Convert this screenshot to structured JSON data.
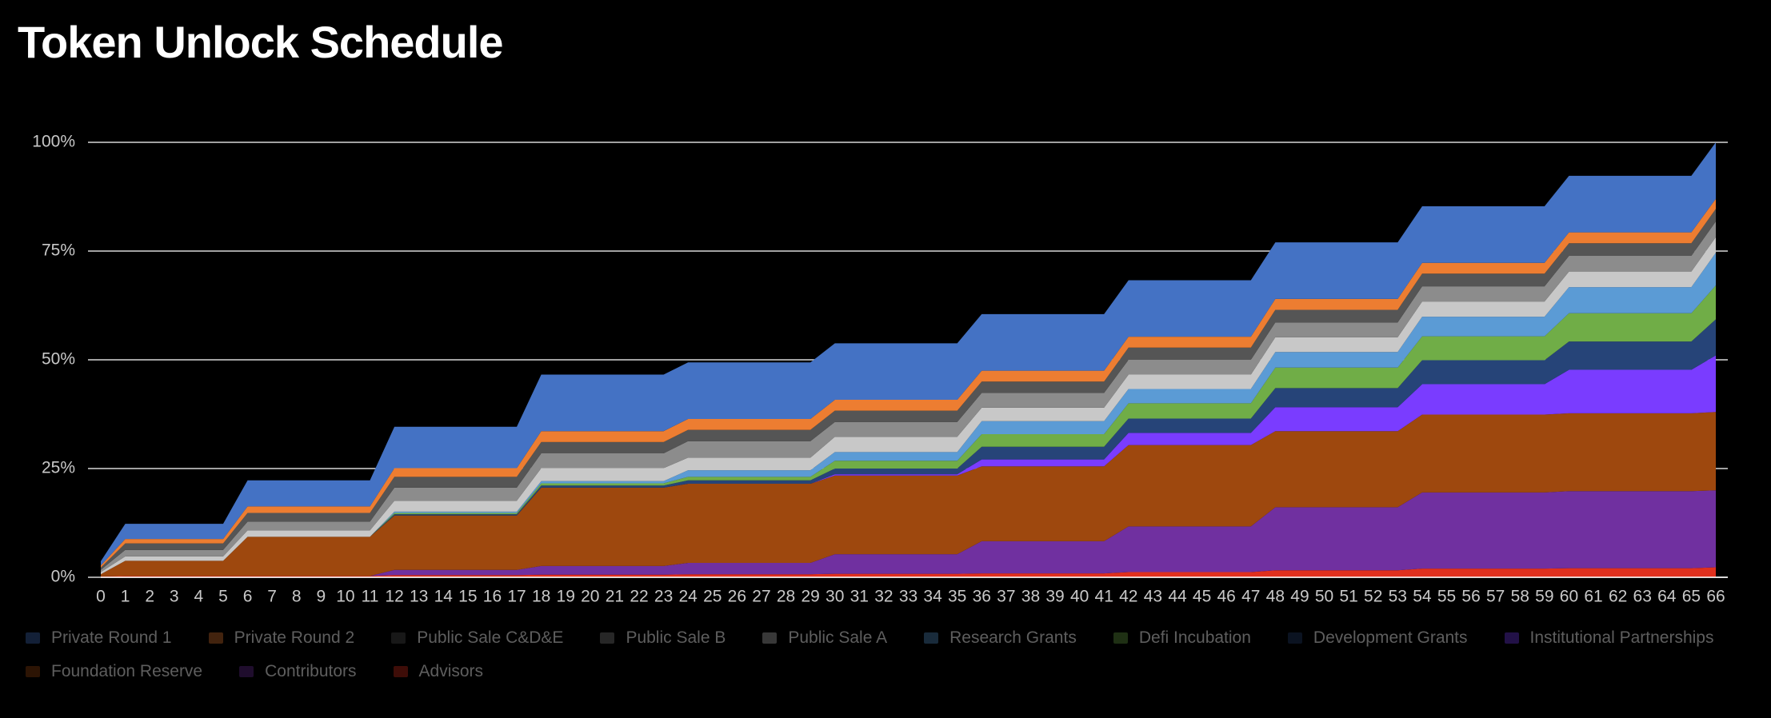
{
  "chart_data": {
    "type": "stacked-area",
    "title": "Token Unlock Schedule",
    "x": [
      0,
      1,
      2,
      3,
      4,
      5,
      6,
      7,
      8,
      9,
      10,
      11,
      12,
      13,
      14,
      15,
      16,
      17,
      18,
      19,
      20,
      21,
      22,
      23,
      24,
      25,
      26,
      27,
      28,
      29,
      30,
      31,
      32,
      33,
      34,
      35,
      36,
      37,
      38,
      39,
      40,
      41,
      42,
      43,
      44,
      45,
      46,
      47,
      48,
      49,
      50,
      51,
      52,
      53,
      54,
      55,
      56,
      57,
      58,
      59,
      60,
      61,
      62,
      63,
      64,
      65,
      66
    ],
    "xlim": [
      0,
      66
    ],
    "ylim": [
      0,
      100
    ],
    "yticks": [
      {
        "value": 0,
        "label": "0%"
      },
      {
        "value": 25,
        "label": "25%"
      },
      {
        "value": 50,
        "label": "50%"
      },
      {
        "value": 75,
        "label": "75%"
      },
      {
        "value": 100,
        "label": "100%"
      }
    ],
    "grid": true,
    "series": [
      {
        "name": "Private Round 1",
        "color": "#4472c4",
        "values": [
          1,
          3.5,
          3.5,
          3.5,
          3.5,
          3.5,
          6,
          6,
          6,
          6,
          6,
          6,
          9.5,
          9.5,
          9.5,
          9.5,
          9.5,
          9.5,
          13,
          13,
          13,
          13,
          13,
          13,
          13,
          13,
          13,
          13,
          13,
          13,
          13,
          13,
          13,
          13,
          13,
          13,
          13,
          13,
          13,
          13,
          13,
          13,
          13,
          13,
          13,
          13,
          13,
          13,
          13,
          13,
          13,
          13,
          13,
          13,
          13,
          13,
          13,
          13,
          13,
          13,
          13,
          13,
          13,
          13,
          13,
          13,
          13
        ]
      },
      {
        "name": "Private Round 2",
        "color": "#ed7d31",
        "values": [
          0.5,
          1,
          1,
          1,
          1,
          1,
          1.5,
          1.5,
          1.5,
          1.5,
          1.5,
          1.5,
          2,
          2,
          2,
          2,
          2,
          2,
          2.5,
          2.5,
          2.5,
          2.5,
          2.5,
          2.5,
          2.5,
          2.5,
          2.5,
          2.5,
          2.5,
          2.5,
          2.5,
          2.5,
          2.5,
          2.5,
          2.5,
          2.5,
          2.5,
          2.5,
          2.5,
          2.5,
          2.5,
          2.5,
          2.5,
          2.5,
          2.5,
          2.5,
          2.5,
          2.5,
          2.5,
          2.5,
          2.5,
          2.5,
          2.5,
          2.5,
          2.5,
          2.5,
          2.5,
          2.5,
          2.5,
          2.5,
          2.5,
          2.5,
          2.5,
          2.5,
          2.5,
          2.5,
          2.3
        ]
      },
      {
        "name": "Public Sale C&D&E",
        "color": "#555555",
        "values": [
          0.5,
          1.5,
          1.5,
          1.5,
          1.5,
          1.5,
          2,
          2,
          2,
          2,
          2,
          2,
          2.5,
          2.5,
          2.5,
          2.5,
          2.5,
          2.5,
          2.6,
          2.6,
          2.6,
          2.6,
          2.6,
          2.6,
          2.6,
          2.6,
          2.6,
          2.6,
          2.6,
          2.6,
          2.6,
          2.6,
          2.6,
          2.6,
          2.6,
          2.6,
          2.6,
          2.6,
          2.6,
          2.6,
          2.6,
          2.6,
          2.8,
          2.8,
          2.8,
          2.8,
          2.8,
          2.8,
          2.9,
          2.9,
          2.9,
          2.9,
          2.9,
          2.9,
          2.9,
          2.9,
          2.9,
          2.9,
          2.9,
          2.9,
          2.9,
          2.9,
          2.9,
          2.9,
          2.9,
          2.9,
          2.9
        ]
      },
      {
        "name": "Public Sale B",
        "color": "#8c8c8c",
        "values": [
          0.5,
          1.5,
          1.5,
          1.5,
          1.5,
          1.5,
          2,
          2,
          2,
          2,
          2,
          2,
          3,
          3,
          3,
          3,
          3,
          3,
          3.4,
          3.4,
          3.4,
          3.4,
          3.4,
          3.4,
          3.8,
          3.8,
          3.8,
          3.8,
          3.8,
          3.8,
          3.4,
          3.4,
          3.4,
          3.4,
          3.4,
          3.4,
          3.4,
          3.4,
          3.4,
          3.4,
          3.4,
          3.4,
          3.4,
          3.4,
          3.4,
          3.4,
          3.4,
          3.4,
          3.4,
          3.4,
          3.4,
          3.4,
          3.4,
          3.4,
          3.5,
          3.5,
          3.5,
          3.5,
          3.5,
          3.5,
          3.6,
          3.6,
          3.6,
          3.6,
          3.6,
          3.6,
          3.6
        ]
      },
      {
        "name": "Public Sale A",
        "color": "#c8c8c8",
        "values": [
          0.5,
          1,
          1,
          1,
          1,
          1,
          1.5,
          1.5,
          1.5,
          1.5,
          1.5,
          1.5,
          2.5,
          2.5,
          2.5,
          2.5,
          2.5,
          2.5,
          3,
          3,
          3,
          3,
          3,
          3,
          2.9,
          2.9,
          2.9,
          2.9,
          2.9,
          2.9,
          3.5,
          3.5,
          3.5,
          3.5,
          3.5,
          3.5,
          3.1,
          3.1,
          3.1,
          3.1,
          3.1,
          3.1,
          3.3,
          3.3,
          3.3,
          3.3,
          3.3,
          3.3,
          3.4,
          3.4,
          3.4,
          3.4,
          3.4,
          3.4,
          3.5,
          3.5,
          3.5,
          3.5,
          3.5,
          3.5,
          3.6,
          3.6,
          3.6,
          3.6,
          3.6,
          3.6,
          3.6
        ]
      },
      {
        "name": "Research Grants",
        "color": "#5b9bd5",
        "values": [
          0,
          0,
          0,
          0,
          0,
          0,
          0,
          0,
          0,
          0,
          0,
          0,
          0.3,
          0.3,
          0.3,
          0.3,
          0.3,
          0.3,
          0.5,
          0.5,
          0.5,
          0.5,
          0.5,
          0.5,
          1.5,
          1.5,
          1.5,
          1.5,
          1.5,
          1.5,
          2,
          2,
          2,
          2,
          2,
          2,
          3,
          3,
          3,
          3,
          3,
          3,
          3.3,
          3.3,
          3.3,
          3.3,
          3.3,
          3.3,
          3.6,
          3.6,
          3.6,
          3.6,
          3.6,
          3.6,
          4.5,
          4.5,
          4.5,
          4.5,
          4.5,
          4.5,
          6,
          6,
          6,
          6,
          6,
          6,
          7.5
        ]
      },
      {
        "name": "Defi Incubation",
        "color": "#70ad47",
        "values": [
          0,
          0,
          0,
          0,
          0,
          0,
          0,
          0,
          0,
          0,
          0,
          0,
          0.3,
          0.3,
          0.3,
          0.3,
          0.3,
          0.3,
          0.5,
          0.5,
          0.5,
          0.5,
          0.5,
          0.5,
          0.8,
          0.8,
          0.8,
          0.8,
          0.8,
          0.8,
          1.8,
          1.8,
          1.8,
          1.8,
          1.8,
          1.8,
          2.9,
          2.9,
          2.9,
          2.9,
          2.9,
          2.9,
          3.5,
          3.5,
          3.5,
          3.5,
          3.5,
          3.5,
          4.7,
          4.7,
          4.7,
          4.7,
          4.7,
          4.7,
          5.5,
          5.5,
          5.5,
          5.5,
          5.5,
          5.5,
          6.5,
          6.5,
          6.5,
          6.5,
          6.5,
          6.5,
          7.8
        ]
      },
      {
        "name": "Development Grants",
        "color": "#264478",
        "values": [
          0,
          0,
          0,
          0,
          0,
          0,
          0,
          0,
          0,
          0,
          0,
          0,
          0.3,
          0.3,
          0.3,
          0.3,
          0.3,
          0.3,
          0.5,
          0.5,
          0.5,
          0.5,
          0.5,
          0.5,
          0.8,
          0.8,
          0.8,
          0.8,
          0.8,
          0.8,
          1.3,
          1.3,
          1.3,
          1.3,
          1.3,
          1.3,
          2.9,
          2.9,
          2.9,
          2.9,
          2.9,
          2.9,
          3.3,
          3.3,
          3.3,
          3.3,
          3.3,
          3.3,
          4.4,
          4.4,
          4.4,
          4.4,
          4.4,
          4.4,
          5.5,
          5.5,
          5.5,
          5.5,
          5.5,
          5.5,
          6.5,
          6.5,
          6.5,
          6.5,
          6.5,
          6.5,
          8.3
        ]
      },
      {
        "name": "Institutional Partnerships",
        "color": "#7a3cff",
        "values": [
          0,
          0,
          0,
          0,
          0,
          0,
          0,
          0,
          0,
          0,
          0,
          0,
          0,
          0,
          0,
          0,
          0,
          0,
          0,
          0,
          0,
          0,
          0,
          0,
          0,
          0,
          0,
          0,
          0,
          0,
          0.3,
          0.3,
          0.3,
          0.3,
          0.3,
          0.3,
          1.6,
          1.6,
          1.6,
          1.6,
          1.6,
          1.6,
          2.8,
          2.8,
          2.8,
          2.8,
          2.8,
          2.8,
          5.5,
          5.5,
          5.5,
          5.5,
          5.5,
          5.5,
          7,
          7,
          7,
          7,
          7,
          7,
          10,
          10,
          10,
          10,
          10,
          10,
          13
        ]
      },
      {
        "name": "Foundation Reserve",
        "color": "#9e480e",
        "values": [
          0.5,
          3.5,
          3.5,
          3.5,
          3.5,
          3.5,
          9,
          9,
          9,
          9,
          9,
          9,
          12.5,
          12.5,
          12.5,
          12.5,
          12.5,
          12.5,
          18,
          18,
          18,
          18,
          18,
          18,
          18.2,
          18.2,
          18.2,
          18.2,
          18.2,
          18.2,
          18.1,
          18.1,
          18.1,
          18.1,
          18.1,
          18.1,
          17.2,
          17.2,
          17.2,
          17.2,
          17.2,
          17.2,
          18.7,
          18.7,
          18.7,
          18.7,
          18.7,
          18.7,
          17.5,
          17.5,
          17.5,
          17.5,
          17.5,
          17.5,
          17.9,
          17.9,
          17.9,
          17.9,
          17.9,
          17.9,
          17.9,
          17.9,
          17.9,
          17.9,
          17.9,
          17.9,
          18
        ]
      },
      {
        "name": "Contributors",
        "color": "#7030a0",
        "values": [
          0,
          0,
          0,
          0,
          0,
          0,
          0,
          0,
          0,
          0,
          0,
          0,
          1.2,
          1.2,
          1.2,
          1.2,
          1.2,
          1.2,
          2,
          2,
          2,
          2,
          2,
          2,
          2.6,
          2.6,
          2.6,
          2.6,
          2.6,
          2.6,
          4.5,
          4.5,
          4.5,
          4.5,
          4.5,
          4.5,
          7.4,
          7.4,
          7.4,
          7.4,
          7.4,
          7.4,
          10.5,
          10.5,
          10.5,
          10.5,
          10.5,
          10.5,
          14.5,
          14.5,
          14.5,
          14.5,
          14.5,
          14.5,
          17.5,
          17.5,
          17.5,
          17.5,
          17.5,
          17.5,
          17.7,
          17.7,
          17.7,
          17.7,
          17.7,
          17.7,
          17.7
        ]
      },
      {
        "name": "Advisors",
        "color": "#e0301e",
        "values": [
          0.2,
          0.3,
          0.3,
          0.3,
          0.3,
          0.3,
          0.3,
          0.3,
          0.3,
          0.3,
          0.3,
          0.3,
          0.5,
          0.5,
          0.5,
          0.5,
          0.5,
          0.5,
          0.6,
          0.6,
          0.6,
          0.6,
          0.6,
          0.6,
          0.7,
          0.7,
          0.7,
          0.7,
          0.7,
          0.7,
          0.8,
          0.8,
          0.8,
          0.8,
          0.8,
          0.8,
          0.9,
          0.9,
          0.9,
          0.9,
          0.9,
          0.9,
          1.2,
          1.2,
          1.2,
          1.2,
          1.2,
          1.2,
          1.6,
          1.6,
          1.6,
          1.6,
          1.6,
          1.6,
          2,
          2,
          2,
          2,
          2,
          2,
          2.1,
          2.1,
          2.1,
          2.1,
          2.1,
          2.1,
          2.3
        ]
      }
    ]
  }
}
